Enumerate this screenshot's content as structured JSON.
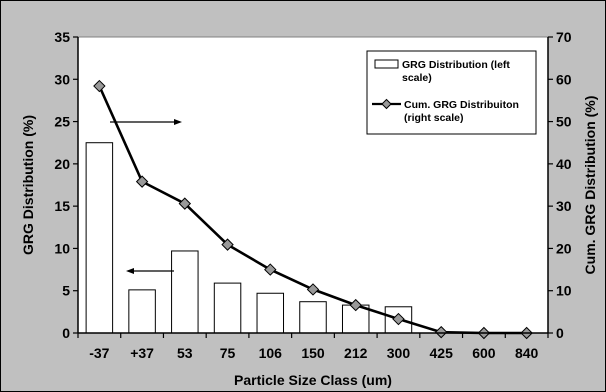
{
  "chart_data": {
    "type": "bar+line",
    "categories": [
      "-37",
      "+37",
      "53",
      "75",
      "106",
      "150",
      "212",
      "300",
      "425",
      "600",
      "840"
    ],
    "series": [
      {
        "name": "GRG Distribution (left scale)",
        "name_lines": [
          "GRG Distribution (left",
          "scale)"
        ],
        "type": "bar",
        "axis": "left",
        "values": [
          22.5,
          5.1,
          9.7,
          5.9,
          4.7,
          3.7,
          3.3,
          3.1,
          0,
          0,
          0
        ]
      },
      {
        "name": "Cum. GRG Distribuiton (right scale)",
        "name_lines": [
          "Cum. GRG Distribuiton",
          "(right scale)"
        ],
        "type": "line",
        "axis": "right",
        "marker": "diamond",
        "values": [
          58.4,
          35.8,
          30.6,
          20.9,
          15.0,
          10.3,
          6.6,
          3.3,
          0.2,
          0,
          0
        ]
      }
    ],
    "xlabel": "Particle Size Class (um)",
    "ylabel": "GRG Distribution (%)",
    "y2label": "Cum. GRG Distribution (%)",
    "ylim": [
      0,
      35
    ],
    "y2lim": [
      0,
      70
    ],
    "yticks": [
      0,
      5,
      10,
      15,
      20,
      25,
      30,
      35
    ],
    "y2ticks": [
      0,
      10,
      20,
      30,
      40,
      50,
      60,
      70
    ],
    "grid": false,
    "legend_position": "top-right",
    "colors": {
      "background": "#c0c0c0",
      "plot_area": "#ffffff",
      "bar_fill": "#ffffff",
      "bar_edge": "#000000",
      "line": "#000000",
      "marker_fill": "#999999"
    },
    "annotations": [
      {
        "type": "arrow",
        "direction": "right",
        "meaning": "points to right scale"
      },
      {
        "type": "arrow",
        "direction": "left",
        "meaning": "points to left scale"
      }
    ]
  }
}
